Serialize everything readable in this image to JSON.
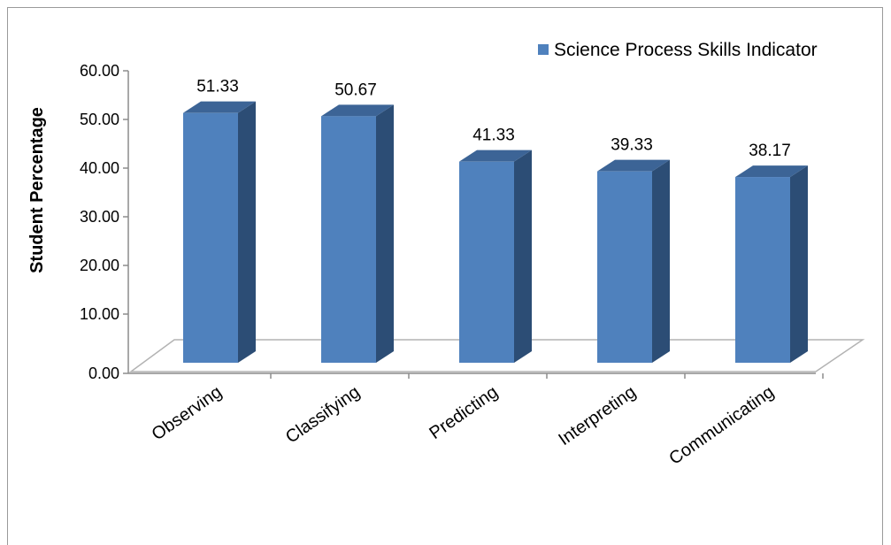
{
  "chart_data": {
    "type": "bar",
    "categories": [
      "Observing",
      "Classifying",
      "Predicting",
      "Interpreting",
      "Communicating"
    ],
    "series": [
      {
        "name": "Science Process Skills Indicator",
        "values": [
          51.33,
          50.67,
          41.33,
          39.33,
          38.17
        ]
      }
    ],
    "data_labels": [
      "51.33",
      "50.67",
      "41.33",
      "39.33",
      "38.17"
    ],
    "title": "",
    "xlabel": "",
    "ylabel": "Student Percentage",
    "ylim": [
      0,
      60
    ],
    "yticks": [
      "0.00",
      "10.00",
      "20.00",
      "30.00",
      "40.00",
      "50.00",
      "60.00"
    ],
    "grid": false,
    "legend": "top-right",
    "style": "3d-column",
    "colors": {
      "bar_front": "#4f81bd",
      "bar_side": "#2c4d75",
      "bar_top": "#3c6496",
      "floor": "#ffffff",
      "floor_edge": "#b3b3b3"
    }
  }
}
